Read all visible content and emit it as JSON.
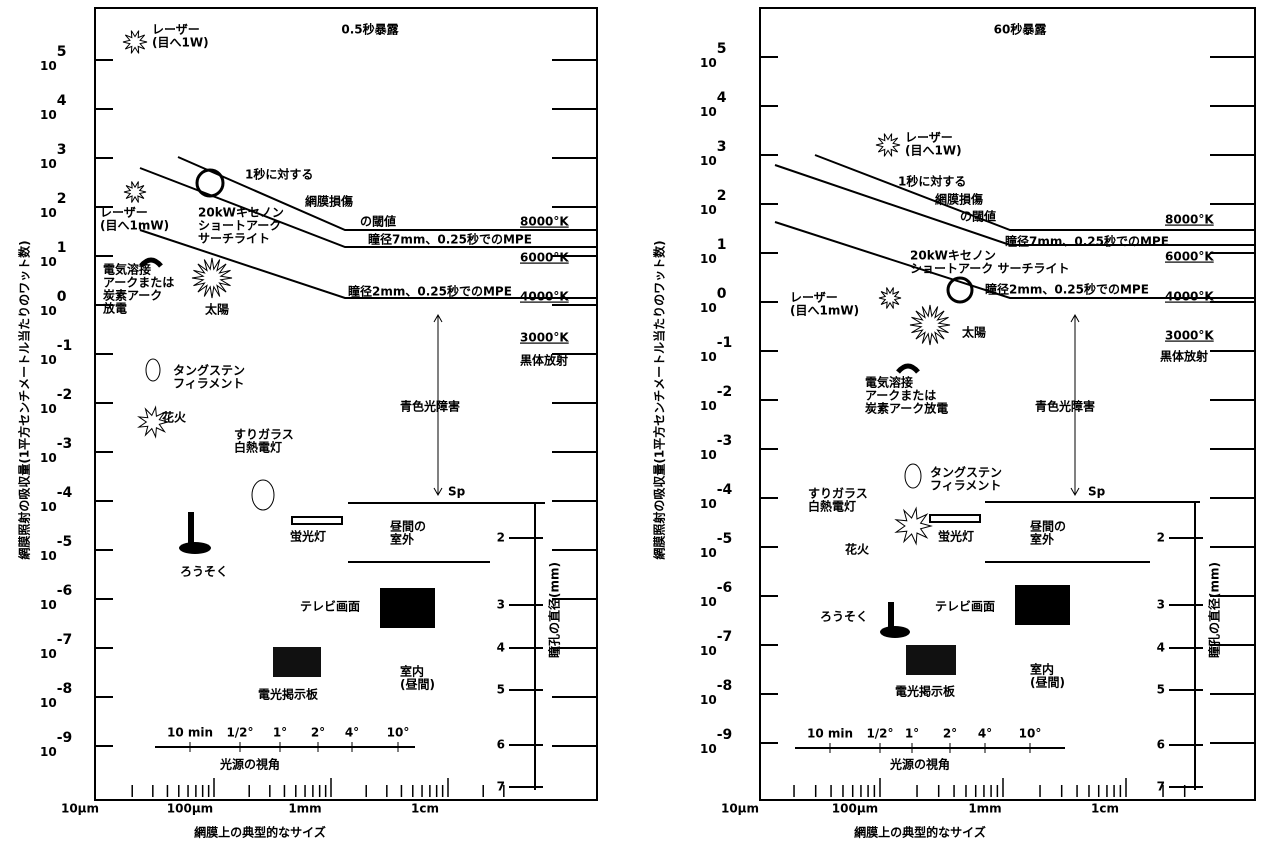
{
  "panels": [
    {
      "title": "0.5秒暴露",
      "y_label": "網膜照射の吸収量(1平方センチメートル当たりのワット数)",
      "x_label": "網膜上の典型的なサイズ",
      "y_ticks": {
        "base": "10",
        "exponents": [
          "5",
          "4",
          "3",
          "2",
          "1",
          "0",
          "-1",
          "-2",
          "-3",
          "-4",
          "-5",
          "-6",
          "-7",
          "-8",
          "-9"
        ]
      },
      "x_ticks": [
        "10μm",
        "100μm",
        "1mm",
        "1cm"
      ],
      "angle_ticks": [
        "10 min",
        "1/2°",
        "1°",
        "2°",
        "4°",
        "10°"
      ],
      "angle_label": "光源の視角",
      "pupil_label": "瞳孔の直径(mm)",
      "pupil_ticks": [
        "2",
        "3",
        "4",
        "5",
        "6",
        "7"
      ],
      "annotations": [
        [
          "レーザー",
          "(目へ1W)"
        ],
        [
          "1秒に対する"
        ],
        [
          "網膜損傷"
        ],
        [
          "の閾値"
        ],
        [
          "レーザー",
          "(目へ1mW)"
        ],
        [
          "20kWキセノン",
          "ショートアーク",
          "サーチライト"
        ],
        [
          "瞳径7mm、0.25秒でのMPE"
        ],
        [
          "8000°K"
        ],
        [
          "6000°K"
        ],
        [
          "4000°K"
        ],
        [
          "3000°K"
        ],
        [
          "黒体放射"
        ],
        [
          "瞳径2mm、0.25秒でのMPE"
        ],
        [
          "電気溶接",
          "アークまたは",
          "炭素アーク",
          "放電"
        ],
        [
          "太陽"
        ],
        [
          "タングステン",
          "フィラメント"
        ],
        [
          "花火"
        ],
        [
          "青色光障害"
        ],
        [
          "すりガラス",
          "白熱電灯"
        ],
        [
          "Sp"
        ],
        [
          "昼間の",
          "室外"
        ],
        [
          "蛍光灯"
        ],
        [
          "ろうそく"
        ],
        [
          "テレビ画面"
        ],
        [
          "室内",
          "(昼間)"
        ],
        [
          "電光掲示板"
        ]
      ]
    },
    {
      "title": "60秒暴露",
      "y_label": "網膜照射の吸収量(1平方センチメートル当たりのワット数)",
      "x_label": "網膜上の典型的なサイズ",
      "y_ticks": {
        "base": "10",
        "exponents": [
          "5",
          "4",
          "3",
          "2",
          "1",
          "0",
          "-1",
          "-2",
          "-3",
          "-4",
          "-5",
          "-6",
          "-7",
          "-8",
          "-9"
        ]
      },
      "x_ticks": [
        "10μm",
        "100μm",
        "1mm",
        "1cm"
      ],
      "angle_ticks": [
        "10 min",
        "1/2°",
        "1°",
        "2°",
        "4°",
        "10°"
      ],
      "angle_label": "光源の視角",
      "pupil_label": "瞳孔の直径(mm)",
      "pupil_ticks": [
        "2",
        "3",
        "4",
        "5",
        "6",
        "7"
      ],
      "annotations": [
        [
          "レーザー",
          "(目へ1W)"
        ],
        [
          "1秒に対する"
        ],
        [
          "網膜損傷"
        ],
        [
          "の閾値"
        ],
        [
          "レーザー",
          "(目へ1mW)"
        ],
        [
          "20kWキセノン",
          "ショートアーク サーチライト"
        ],
        [
          "瞳径7mm、0.25秒でのMPE"
        ],
        [
          "8000°K"
        ],
        [
          "6000°K"
        ],
        [
          "4000°K"
        ],
        [
          "3000°K"
        ],
        [
          "黒体放射"
        ],
        [
          "瞳径2mm、0.25秒でのMPE"
        ],
        [
          "電気溶接",
          "アークまたは",
          "炭素アーク放電"
        ],
        [
          "太陽"
        ],
        [
          "タングステン",
          "フィラメント"
        ],
        [
          "花火"
        ],
        [
          "青色光障害"
        ],
        [
          "すりガラス",
          "白熱電灯"
        ],
        [
          "Sp"
        ],
        [
          "昼間の",
          "室外"
        ],
        [
          "蛍光灯"
        ],
        [
          "ろうそく"
        ],
        [
          "テレビ画面"
        ],
        [
          "室内",
          "(昼間)"
        ],
        [
          "電光掲示板"
        ]
      ]
    }
  ]
}
